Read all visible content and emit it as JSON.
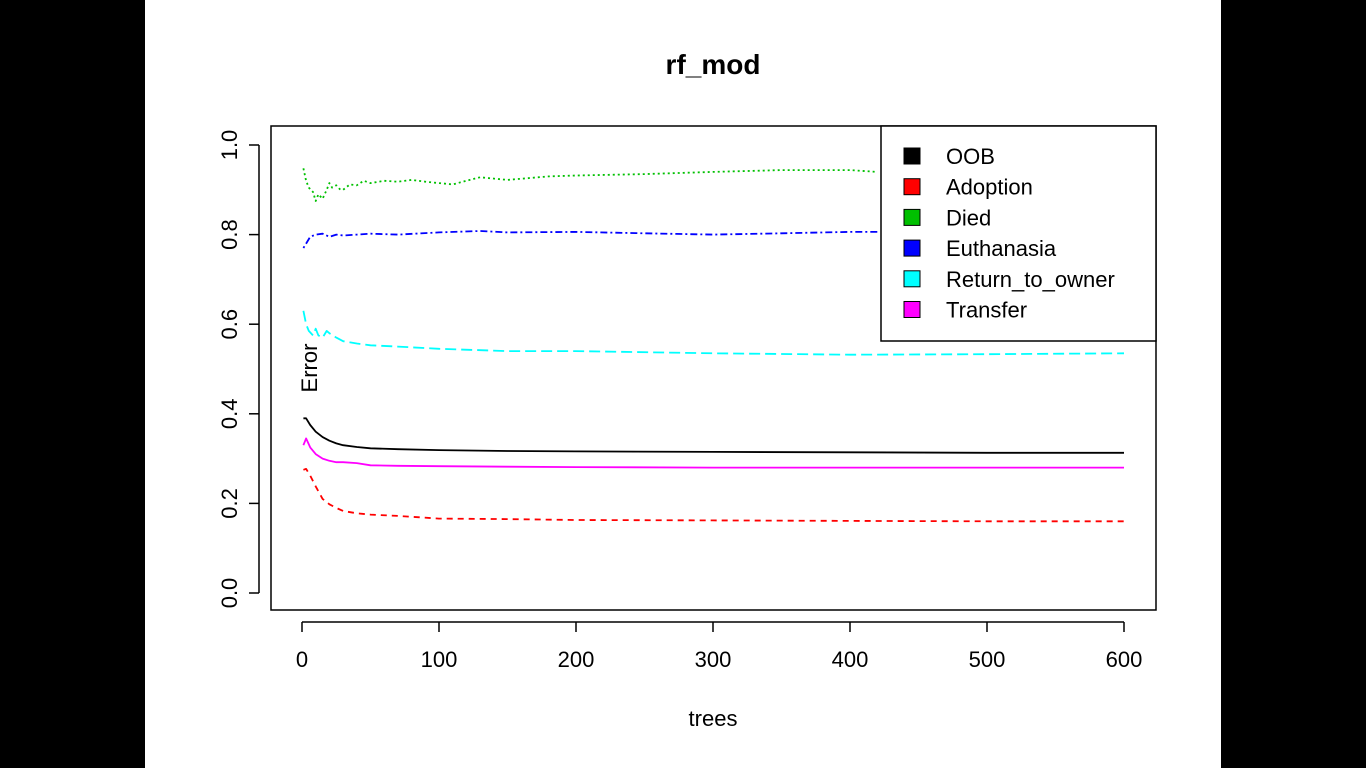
{
  "chart_data": {
    "type": "line",
    "title": "rf_mod",
    "xlabel": "trees",
    "ylabel": "Error",
    "xlim": [
      0,
      600
    ],
    "ylim": [
      0,
      1
    ],
    "xticks": [
      "0",
      "100",
      "200",
      "300",
      "400",
      "500",
      "600"
    ],
    "yticks": [
      "0.0",
      "0.2",
      "0.4",
      "0.6",
      "0.8",
      "1.0"
    ],
    "legend_position": "top-right",
    "grid": false,
    "series": [
      {
        "name": "OOB",
        "color": "#000000",
        "dash": "solid",
        "x": [
          1,
          3,
          6,
          10,
          15,
          20,
          25,
          30,
          40,
          50,
          70,
          100,
          150,
          200,
          300,
          400,
          500,
          600
        ],
        "y": [
          0.39,
          0.39,
          0.375,
          0.36,
          0.348,
          0.34,
          0.334,
          0.33,
          0.326,
          0.323,
          0.321,
          0.319,
          0.317,
          0.316,
          0.315,
          0.314,
          0.313,
          0.313
        ]
      },
      {
        "name": "Adoption",
        "color": "#ff0000",
        "dash": "dashed",
        "x": [
          1,
          3,
          6,
          10,
          15,
          20,
          25,
          30,
          40,
          50,
          70,
          100,
          150,
          200,
          300,
          400,
          500,
          600
        ],
        "y": [
          0.275,
          0.277,
          0.262,
          0.238,
          0.21,
          0.198,
          0.19,
          0.183,
          0.178,
          0.175,
          0.172,
          0.166,
          0.165,
          0.163,
          0.162,
          0.161,
          0.16,
          0.16
        ]
      },
      {
        "name": "Died",
        "color": "#00c000",
        "dash": "dotted",
        "x": [
          1,
          3,
          5,
          8,
          10,
          12,
          15,
          18,
          20,
          22,
          25,
          28,
          30,
          35,
          40,
          45,
          50,
          60,
          70,
          80,
          90,
          100,
          110,
          120,
          130,
          150,
          180,
          200,
          250,
          300,
          350,
          400,
          420
        ],
        "y": [
          0.948,
          0.92,
          0.905,
          0.895,
          0.875,
          0.89,
          0.88,
          0.9,
          0.915,
          0.905,
          0.91,
          0.9,
          0.9,
          0.912,
          0.91,
          0.92,
          0.915,
          0.92,
          0.918,
          0.922,
          0.918,
          0.915,
          0.912,
          0.92,
          0.928,
          0.922,
          0.93,
          0.932,
          0.935,
          0.94,
          0.944,
          0.944,
          0.94
        ]
      },
      {
        "name": "Euthanasia",
        "color": "#0000ff",
        "dash": "dashdot",
        "x": [
          1,
          3,
          6,
          10,
          15,
          20,
          25,
          30,
          40,
          50,
          70,
          100,
          130,
          150,
          200,
          250,
          300,
          350,
          400,
          420
        ],
        "y": [
          0.77,
          0.78,
          0.795,
          0.8,
          0.802,
          0.795,
          0.8,
          0.798,
          0.8,
          0.802,
          0.8,
          0.805,
          0.808,
          0.805,
          0.806,
          0.803,
          0.8,
          0.803,
          0.806,
          0.806
        ]
      },
      {
        "name": "Return_to_owner",
        "color": "#00ffff",
        "dash": "longdash",
        "x": [
          1,
          3,
          5,
          8,
          10,
          12,
          15,
          18,
          20,
          25,
          30,
          40,
          50,
          70,
          100,
          150,
          200,
          300,
          400,
          500,
          600
        ],
        "y": [
          0.63,
          0.6,
          0.585,
          0.575,
          0.59,
          0.575,
          0.57,
          0.585,
          0.58,
          0.57,
          0.562,
          0.557,
          0.553,
          0.55,
          0.545,
          0.54,
          0.54,
          0.535,
          0.532,
          0.533,
          0.535
        ]
      },
      {
        "name": "Transfer",
        "color": "#ff00ff",
        "dash": "solid",
        "x": [
          1,
          3,
          6,
          10,
          15,
          20,
          25,
          30,
          40,
          50,
          70,
          100,
          150,
          200,
          300,
          400,
          500,
          600
        ],
        "y": [
          0.33,
          0.345,
          0.325,
          0.31,
          0.3,
          0.295,
          0.292,
          0.292,
          0.29,
          0.285,
          0.284,
          0.283,
          0.282,
          0.281,
          0.28,
          0.28,
          0.28,
          0.28
        ]
      }
    ]
  }
}
